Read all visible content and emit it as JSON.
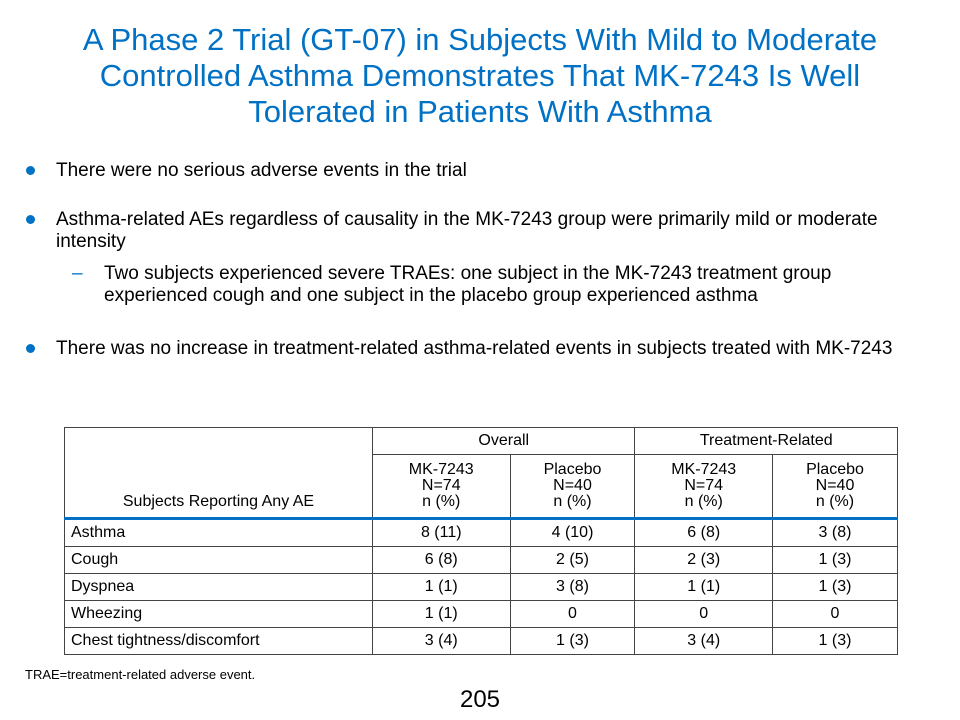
{
  "title": "A Phase 2 Trial (GT-07) in Subjects With Mild to Moderate Controlled Asthma Demonstrates That MK-7243 Is Well Tolerated in Patients With Asthma",
  "bullets": [
    {
      "text": "There were no serious adverse events in the trial"
    },
    {
      "text": "Asthma-related AEs regardless of causality in the MK-7243 group were primarily mild or moderate intensity",
      "sub": "Two subjects experienced severe TRAEs: one subject in the MK-7243 treatment group experienced cough and one subject in the placebo group experienced asthma"
    },
    {
      "text": "There was no increase in treatment-related asthma-related events in subjects treated with MK-7243"
    }
  ],
  "table": {
    "corner": "Subjects Reporting Any AE",
    "groups": [
      "Overall",
      "Treatment-Related"
    ],
    "columns": [
      {
        "line1": "MK-7243",
        "line2": "N=74",
        "line3": "n (%)"
      },
      {
        "line1": "Placebo",
        "line2": "N=40",
        "line3": "n (%)"
      },
      {
        "line1": "MK-7243",
        "line2": "N=74",
        "line3": "n (%)"
      },
      {
        "line1": "Placebo",
        "line2": "N=40",
        "line3": "n (%)"
      }
    ],
    "rows": [
      {
        "label": "Asthma",
        "values": [
          "8 (11)",
          "4 (10)",
          "6 (8)",
          "3 (8)"
        ]
      },
      {
        "label": "Cough",
        "values": [
          "6 (8)",
          "2 (5)",
          "2 (3)",
          "1 (3)"
        ]
      },
      {
        "label": "Dyspnea",
        "values": [
          "1 (1)",
          "3 (8)",
          "1 (1)",
          "1 (3)"
        ]
      },
      {
        "label": "Wheezing",
        "values": [
          "1 (1)",
          "0",
          "0",
          "0"
        ]
      },
      {
        "label": "Chest tightness/discomfort",
        "values": [
          "3 (4)",
          "1 (3)",
          "3 (4)",
          "1 (3)"
        ]
      }
    ]
  },
  "footnote": "TRAE=treatment-related adverse event.",
  "page_number": "205",
  "colors": {
    "accent": "#0071c5"
  }
}
